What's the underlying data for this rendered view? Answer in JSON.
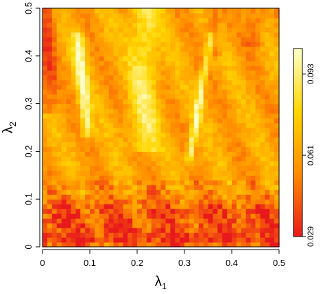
{
  "chart_data": {
    "type": "heatmap",
    "x_axis": {
      "symbol": "λ",
      "subscript": "1",
      "range": [
        0,
        0.5
      ],
      "ticks": [
        "0",
        "0.1",
        "0.2",
        "0.3",
        "0.4",
        "0.5"
      ]
    },
    "y_axis": {
      "symbol": "λ",
      "subscript": "2",
      "range": [
        0,
        0.5
      ],
      "ticks": [
        "0",
        "0.1",
        "0.2",
        "0.3",
        "0.4",
        "0.5"
      ]
    },
    "grid": {
      "nx": 50,
      "ny": 50
    },
    "colorbar": {
      "range": [
        0.029,
        0.103
      ],
      "ticks": [
        "0.029",
        "0.061",
        "0.093"
      ],
      "colors": [
        "#e8191c",
        "#ff8c00",
        "#ffd700",
        "#ffffcc"
      ]
    },
    "value_model": {
      "description_of_regions": "heat values over (lambda1, lambda2) in colorbar units",
      "base": 0.062,
      "features": [
        {
          "kind": "low_band",
          "y_center": 0.06,
          "y_width": 0.05,
          "amount": -0.022
        },
        {
          "kind": "low_band",
          "y_center": 0.015,
          "y_width": 0.015,
          "amount": -0.018
        },
        {
          "kind": "high_ridge",
          "line": [
            [
              0.075,
              0.44
            ],
            [
              0.095,
              0.24
            ]
          ],
          "width": 0.012,
          "amount": 0.035
        },
        {
          "kind": "high_ridge",
          "line": [
            [
              0.31,
              0.18
            ],
            [
              0.355,
              0.44
            ]
          ],
          "width": 0.008,
          "amount": 0.035
        },
        {
          "kind": "high_column",
          "x_center": 0.215,
          "x_width": 0.03,
          "y_min": 0.2,
          "amount": 0.025
        },
        {
          "kind": "low_column",
          "x_center": 0.01,
          "x_width": 0.02,
          "y_min": 0.28,
          "amount": -0.02
        },
        {
          "kind": "low_column",
          "x_center": 0.36,
          "x_width": 0.015,
          "y_min": 0.4,
          "amount": -0.015
        },
        {
          "kind": "low_column",
          "x_center": 0.45,
          "x_width": 0.02,
          "y_min": 0.42,
          "amount": -0.015
        }
      ]
    }
  }
}
